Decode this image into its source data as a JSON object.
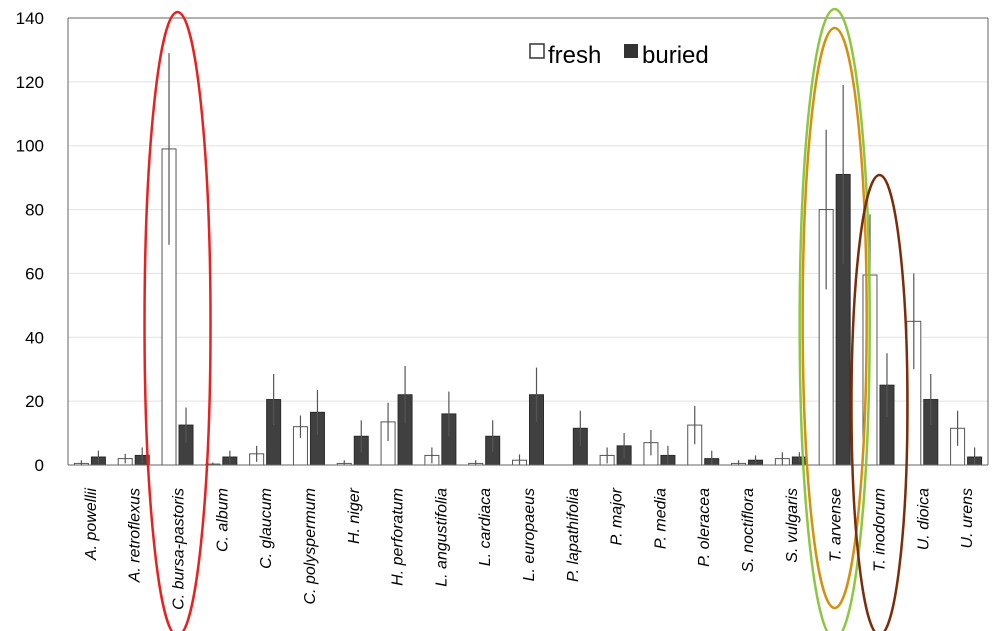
{
  "chart_data": {
    "type": "bar",
    "title": "",
    "xlabel": "",
    "ylabel": "",
    "ylim": [
      0,
      140
    ],
    "yticks": [
      0,
      20,
      40,
      60,
      80,
      100,
      120,
      140
    ],
    "ytick_labels": [
      "0",
      "20",
      "40",
      "60",
      "80",
      "100",
      "120",
      "140"
    ],
    "grid": true,
    "legend_position": "top-right",
    "categories": [
      "A. powellii",
      "A. retroflexus",
      "C. bursa-pastoris",
      "C. album",
      "C. glaucum",
      "C. polyspermum",
      "H. niger",
      "H. perforatum",
      "L. angustifolia",
      "L. cardiaca",
      "L. europaeus",
      "P. lapathifolia",
      "P. major",
      "P. media",
      "P. oleracea",
      "S. noctiflora",
      "S. vulgaris",
      "T. arvense",
      "T. inodorum",
      "U. dioica",
      "U. urens"
    ],
    "series": [
      {
        "name": "fresh",
        "color": "#ffffff",
        "stroke": "#555555",
        "values": [
          0.5,
          2,
          99,
          0.3,
          3.5,
          12,
          0.5,
          13.5,
          3,
          0.5,
          1.5,
          0,
          3,
          7,
          12.5,
          0.5,
          2,
          80,
          59.5,
          45,
          11.5
        ],
        "errors": [
          1,
          1.5,
          30,
          0.5,
          2.5,
          3.5,
          1,
          6,
          2.5,
          1,
          1.8,
          0,
          2.5,
          4,
          6,
          1,
          2,
          25,
          19,
          15,
          5.5
        ]
      },
      {
        "name": "buried",
        "color": "#404040",
        "stroke": "#2b2b2b",
        "values": [
          2.5,
          3,
          12.5,
          2.5,
          20.5,
          16.5,
          9,
          22,
          16,
          9,
          22,
          11.5,
          6,
          3,
          2,
          1.5,
          2.5,
          91,
          25,
          20.5,
          2.5
        ]
      }
    ],
    "buried_errors": [
      2,
      2.5,
      5.5,
      2,
      8,
      7,
      5,
      9,
      7,
      5,
      8.5,
      5.5,
      4,
      3,
      2.5,
      1.5,
      1.5,
      28,
      10,
      8,
      3
    ],
    "annotations": [
      {
        "shape": "ellipse",
        "color": "#e8211f",
        "around": "C. bursa-pastoris"
      },
      {
        "shape": "ellipse",
        "color": "#8dc63f",
        "around": "T. arvense"
      },
      {
        "shape": "ellipse",
        "color": "#d4900f",
        "around": "T. arvense"
      },
      {
        "shape": "ellipse",
        "color": "#7b2d0a",
        "around": "T. inodorum"
      }
    ]
  }
}
